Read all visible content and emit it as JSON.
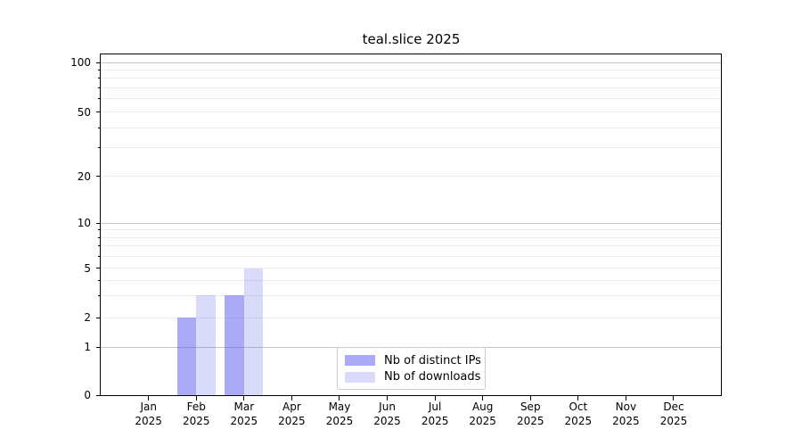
{
  "title": "teal.slice 2025",
  "chart_data": {
    "type": "bar",
    "title": "teal.slice 2025",
    "year": "2025",
    "categories": [
      "Jan",
      "Feb",
      "Mar",
      "Apr",
      "May",
      "Jun",
      "Jul",
      "Aug",
      "Sep",
      "Oct",
      "Nov",
      "Dec"
    ],
    "series": [
      {
        "name": "Nb of distinct IPs",
        "color": "rgba(85,85,238,0.5)",
        "values": [
          null,
          2,
          3,
          null,
          null,
          null,
          null,
          null,
          null,
          null,
          null,
          null
        ]
      },
      {
        "name": "Nb of downloads",
        "color": "rgba(85,85,238,0.22)",
        "values": [
          null,
          3,
          5,
          null,
          null,
          null,
          null,
          null,
          null,
          null,
          null,
          null
        ]
      }
    ],
    "y_axis": {
      "scale": "log-like (asinh), 0 included at bottom",
      "labeled_ticks": [
        100,
        50,
        20,
        10,
        5,
        2,
        1,
        0
      ],
      "major_grid_values": [
        1,
        10,
        100
      ],
      "minor_grid_values": [
        2,
        3,
        4,
        5,
        6,
        7,
        8,
        9,
        20,
        30,
        40,
        50,
        60,
        70,
        80,
        90
      ],
      "unlabeled_minor_tick_values": [
        3,
        4,
        6,
        7,
        8,
        9,
        30,
        40,
        60,
        70,
        80,
        90
      ],
      "ylim": [
        0,
        112
      ]
    },
    "x_axis": {
      "tick_labels_two_lines": true
    },
    "grid": "horizontal only",
    "legend_position": "lower center"
  },
  "legend": {
    "items": [
      {
        "label": "Nb of distinct IPs",
        "color": "rgba(85,85,238,0.5)"
      },
      {
        "label": "Nb of downloads",
        "color": "rgba(85,85,238,0.22)"
      }
    ]
  },
  "colors": {
    "background": "#ffffff",
    "frame": "#000000",
    "text": "#000000",
    "major_grid": "#c6c6c6",
    "minor_grid": "#ececec",
    "legend_border": "#cccccc",
    "bar_dark_rendered": "#aaaaf6",
    "bar_light_rendered": "#dadafb"
  }
}
